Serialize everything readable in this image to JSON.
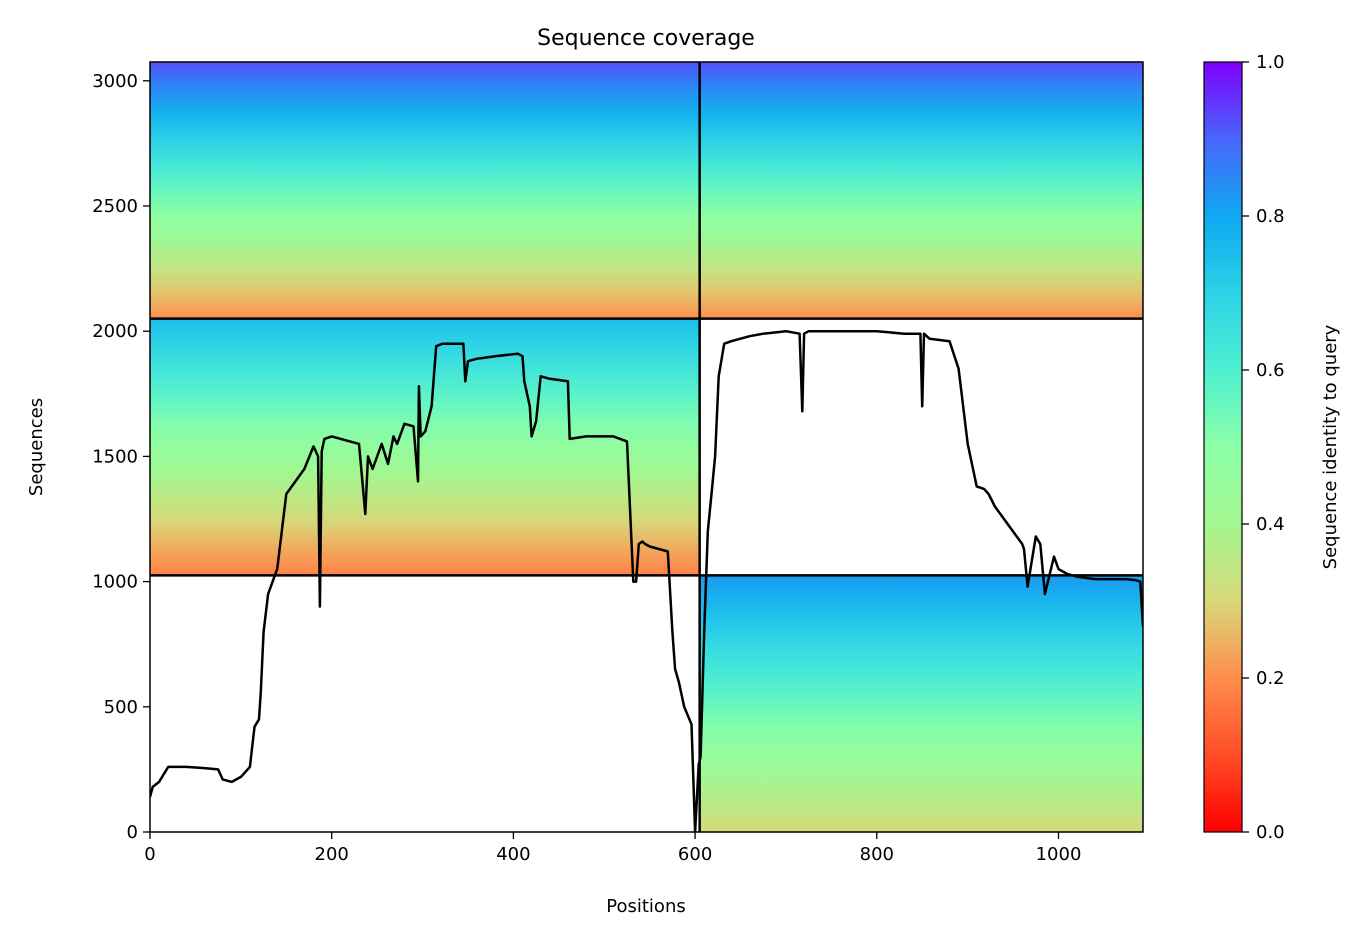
{
  "chart_data": {
    "type": "heatmap",
    "title": "Sequence coverage",
    "xlabel": "Positions",
    "ylabel": "Sequences",
    "xlim": [
      0,
      1093
    ],
    "ylim": [
      0,
      3075
    ],
    "x_ticks": [
      0,
      200,
      400,
      600,
      800,
      1000
    ],
    "y_ticks": [
      0,
      500,
      1000,
      1500,
      2000,
      2500,
      3000
    ],
    "grid": false,
    "colorbar": {
      "label": "Sequence identity to query",
      "range": [
        0.0,
        1.0
      ],
      "ticks": [
        "0.0",
        "0.2",
        "0.4",
        "0.6",
        "0.8",
        "1.0"
      ],
      "colormap": "rainbow_r"
    },
    "divider_lines": {
      "x": [
        605
      ],
      "y": [
        1025,
        2050
      ]
    },
    "blocks": [
      {
        "x_range": [
          0,
          605
        ],
        "y_range": [
          2050,
          3075
        ],
        "identity_top": 0.92,
        "identity_bottom": 0.2
      },
      {
        "x_range": [
          605,
          1093
        ],
        "y_range": [
          2050,
          3075
        ],
        "identity_top": 0.92,
        "identity_bottom": 0.2
      },
      {
        "x_range": [
          0,
          605
        ],
        "y_range": [
          1025,
          2050
        ],
        "identity_top": 0.75,
        "identity_bottom": 0.18
      },
      {
        "x_range": [
          605,
          1093
        ],
        "y_range": [
          0,
          1025
        ],
        "identity_top": 0.82,
        "identity_bottom": 0.3
      }
    ],
    "series": [
      {
        "type": "line",
        "color": "#000000",
        "x": [
          0,
          3,
          10,
          20,
          40,
          60,
          75,
          80,
          90,
          100,
          110,
          115,
          120,
          122,
          125,
          130,
          140,
          150,
          160,
          170,
          180,
          185,
          187,
          189,
          192,
          200,
          230,
          237,
          240,
          245,
          255,
          262,
          268,
          272,
          280,
          290,
          295,
          296,
          298,
          303,
          310,
          315,
          322,
          330,
          345,
          347,
          350,
          360,
          380,
          405,
          410,
          412,
          418,
          420,
          425,
          430,
          440,
          460,
          462,
          480,
          510,
          525,
          532,
          535,
          538,
          542,
          545,
          550,
          560,
          570,
          575,
          578,
          582,
          588,
          596,
          600,
          604,
          606,
          610,
          614,
          618,
          622,
          626,
          632,
          640,
          650,
          660,
          675,
          700,
          715,
          718,
          720,
          725,
          740,
          780,
          800,
          830,
          848,
          850,
          852,
          858,
          880,
          890,
          900,
          910,
          918,
          923,
          930,
          940,
          950,
          960,
          962,
          966,
          975,
          980,
          985,
          995,
          1000,
          1010,
          1020,
          1040,
          1060,
          1075,
          1085,
          1090,
          1093
        ],
        "y": [
          140,
          180,
          200,
          260,
          260,
          255,
          250,
          210,
          200,
          220,
          260,
          420,
          450,
          560,
          800,
          950,
          1050,
          1350,
          1400,
          1450,
          1540,
          1500,
          900,
          1520,
          1570,
          1580,
          1550,
          1270,
          1500,
          1450,
          1550,
          1470,
          1580,
          1550,
          1630,
          1620,
          1400,
          1780,
          1580,
          1600,
          1700,
          1940,
          1950,
          1950,
          1950,
          1800,
          1880,
          1890,
          1900,
          1910,
          1900,
          1800,
          1700,
          1580,
          1640,
          1820,
          1810,
          1800,
          1570,
          1580,
          1580,
          1560,
          1000,
          1000,
          1150,
          1160,
          1150,
          1140,
          1130,
          1120,
          800,
          650,
          600,
          500,
          430,
          0,
          270,
          300,
          800,
          1200,
          1350,
          1500,
          1820,
          1950,
          1960,
          1970,
          1980,
          1990,
          2000,
          1990,
          1680,
          1990,
          2000,
          2000,
          2000,
          2000,
          1990,
          1990,
          1700,
          1990,
          1970,
          1960,
          1850,
          1550,
          1380,
          1370,
          1350,
          1300,
          1250,
          1200,
          1150,
          1130,
          980,
          1180,
          1150,
          950,
          1100,
          1050,
          1030,
          1020,
          1010,
          1010,
          1010,
          1005,
          1000,
          820
        ]
      }
    ]
  }
}
